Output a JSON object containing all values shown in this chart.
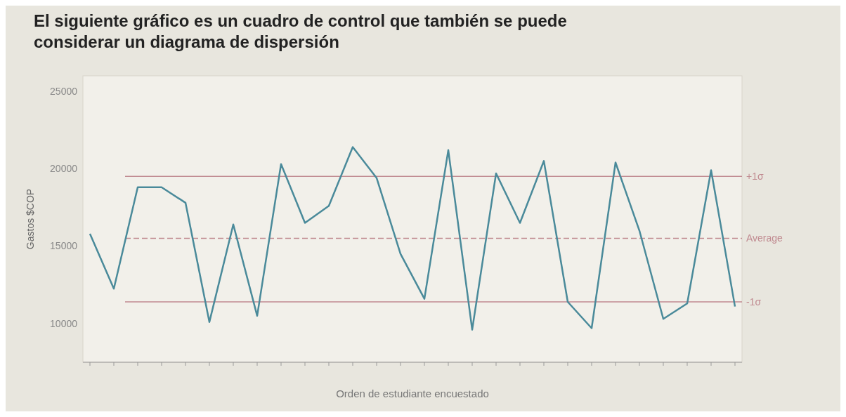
{
  "chart_data": {
    "type": "line",
    "title": "El siguiente gráfico es un cuadro de control que también se puede considerar un diagrama de dispersión",
    "xlabel": "Orden de estudiante encuestado",
    "ylabel": "Gastos $COP",
    "categories": [
      null,
      null,
      null,
      null,
      null,
      null,
      null,
      null,
      null,
      null,
      null,
      null,
      null,
      null,
      null,
      null,
      null,
      null,
      null,
      null,
      null,
      null,
      null,
      null,
      null,
      null,
      null,
      null
    ],
    "series": [
      {
        "color": "#4a8a9a",
        "values": [
          15800,
          12250,
          18800,
          18800,
          17800,
          10100,
          16400,
          10500,
          20300,
          16500,
          17600,
          21400,
          19400,
          14500,
          11600,
          21200,
          9600,
          19700,
          16500,
          20500,
          11400,
          9700,
          20400,
          16000,
          10300,
          11300,
          19900,
          11100
        ]
      }
    ],
    "ylim": [
      7500,
      26000
    ],
    "yticks": [
      10000,
      15000,
      20000,
      25000
    ],
    "ref_lines": [
      {
        "axis": "y",
        "value": 19500,
        "label": "+1σ",
        "color": "#c08a90"
      },
      {
        "axis": "y",
        "value": 15500,
        "label": "Average",
        "color": "#c08a90",
        "line_style": "dashed"
      },
      {
        "axis": "y",
        "value": 11400,
        "label": "-1σ",
        "color": "#c08a90"
      }
    ]
  }
}
